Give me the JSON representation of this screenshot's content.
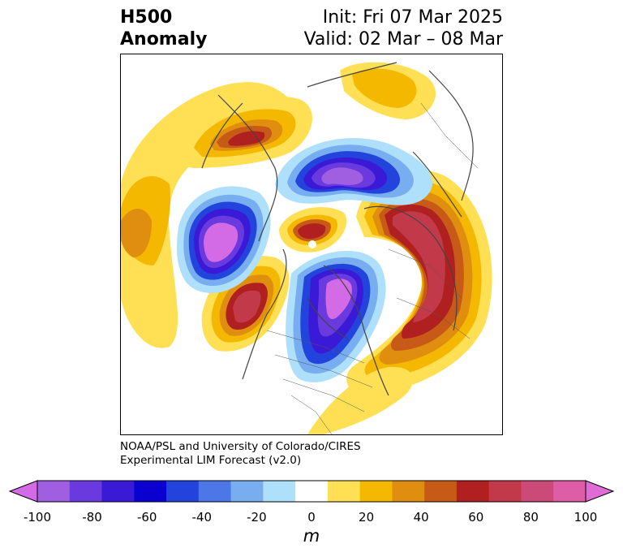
{
  "title": {
    "left_line1": "H500",
    "left_line2": "Anomaly",
    "right_line1": "Init: Fri 07 Mar 2025",
    "right_line2": "Valid: 02 Mar – 08 Mar"
  },
  "credit": {
    "line1": "NOAA/PSL and University of Colorado/CIRES",
    "line2": "Experimental LIM Forecast (v2.0)"
  },
  "colorbar": {
    "unit_label": "m",
    "ticks": [
      "-100",
      "-80",
      "-60",
      "-40",
      "-20",
      "0",
      "20",
      "40",
      "60",
      "80",
      "100"
    ],
    "colors": [
      "#d46be6",
      "#a05ee0",
      "#6a3adf",
      "#3a1ad6",
      "#0a00d0",
      "#2244dd",
      "#4d77e6",
      "#78aef0",
      "#aee0fb",
      "#ffffff",
      "#ffe055",
      "#f5b800",
      "#e08e10",
      "#c85a18",
      "#b02020",
      "#c23a4a",
      "#cc4a78",
      "#dd5ea6",
      "#e06bd4"
    ]
  },
  "map": {
    "projection": "north polar stereographic",
    "field": "500 hPa geopotential height anomaly"
  }
}
